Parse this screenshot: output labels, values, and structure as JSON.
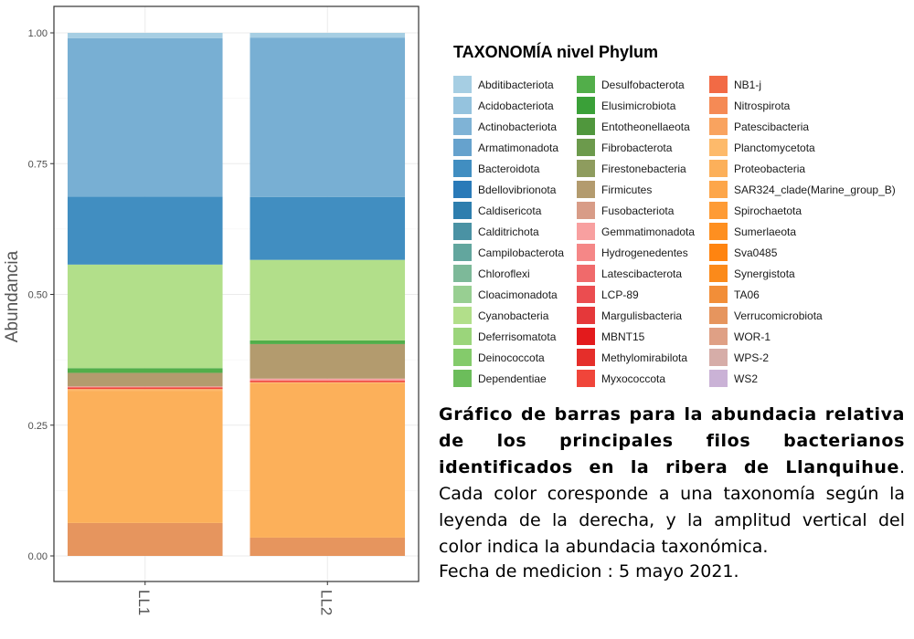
{
  "chart_data": {
    "type": "bar",
    "stacked": true,
    "categories": [
      "LL1",
      "LL2"
    ],
    "ylabel": "Abundancia",
    "xlabel": "",
    "ylim": [
      0,
      1
    ],
    "yticks": [
      "0.00",
      "0.25",
      "0.50",
      "0.75",
      "1.00"
    ],
    "grid": true,
    "legend_position": "right",
    "legend_title": "TAXONOMÍA nivel Phylum",
    "series": [
      {
        "name": "Verrucomicrobiota",
        "values": [
          0.063,
          0.035
        ]
      },
      {
        "name": "Proteobacteria",
        "values": [
          0.252,
          0.295
        ]
      },
      {
        "name": "Planctomycetota",
        "values": [
          0.004,
          0.002
        ]
      },
      {
        "name": "Myxococcota",
        "values": [
          0.003,
          0.003
        ]
      },
      {
        "name": "Gemmatimonadota",
        "values": [
          0.002,
          0.004
        ]
      },
      {
        "name": "Firmicutes",
        "values": [
          0.026,
          0.066
        ]
      },
      {
        "name": "Desulfobacterota",
        "values": [
          0.009,
          0.007
        ]
      },
      {
        "name": "Cyanobacteria",
        "values": [
          0.198,
          0.154
        ]
      },
      {
        "name": "Bacteroidota",
        "values": [
          0.13,
          0.12
        ]
      },
      {
        "name": "Actinobacteriota",
        "values": [
          0.303,
          0.305
        ]
      },
      {
        "name": "Abditibacteriota",
        "values": [
          0.01,
          0.009
        ]
      }
    ],
    "colors": {
      "Verrucomicrobiota": "#E6955E",
      "Proteobacteria": "#FCB05A",
      "Planctomycetota": "#FDBA6B",
      "Myxococcota": "#F0453A",
      "Gemmatimonadota": "#F8A0A0",
      "Firmicutes": "#B39B6E",
      "Desulfobacterota": "#52AE4A",
      "Cyanobacteria": "#B2DF8A",
      "Bacteroidota": "#418EC1",
      "Actinobacteriota": "#78AFD3",
      "Abditibacteriota": "#A6CEE3"
    }
  },
  "legend": {
    "title": "TAXONOMÍA nivel Phylum",
    "columns": [
      [
        {
          "label": "Abditibacteriota",
          "color": "#A6CEE3"
        },
        {
          "label": "Acidobacteriota",
          "color": "#95C3DE"
        },
        {
          "label": "Actinobacteriota",
          "color": "#7FB3D6"
        },
        {
          "label": "Armatimonadota",
          "color": "#66A2CD"
        },
        {
          "label": "Bacteroidota",
          "color": "#418EC1"
        },
        {
          "label": "Bdellovibrionota",
          "color": "#2A7AB8"
        },
        {
          "label": "Caldisericota",
          "color": "#2E7EAE"
        },
        {
          "label": "Calditrichota",
          "color": "#4A92A4"
        },
        {
          "label": "Campilobacterota",
          "color": "#62A69E"
        },
        {
          "label": "Chloroflexi",
          "color": "#7DB999"
        },
        {
          "label": "Cloacimonadota",
          "color": "#98CF92"
        },
        {
          "label": "Cyanobacteria",
          "color": "#B2DF8A"
        },
        {
          "label": "Deferrisomatota",
          "color": "#9BD57B"
        },
        {
          "label": "Deinococcota",
          "color": "#84CB6B"
        },
        {
          "label": "Dependentiae",
          "color": "#6CBD5B"
        }
      ],
      [
        {
          "label": "Desulfobacterota",
          "color": "#52AE4A"
        },
        {
          "label": "Elusimicrobiota",
          "color": "#3AA038"
        },
        {
          "label": "Entotheonellaeota",
          "color": "#50973D"
        },
        {
          "label": "Fibrobacterota",
          "color": "#6C9A4C"
        },
        {
          "label": "Firestonebacteria",
          "color": "#8E9C5E"
        },
        {
          "label": "Firmicutes",
          "color": "#B39B6E"
        },
        {
          "label": "Fusobacteriota",
          "color": "#D89C87"
        },
        {
          "label": "Gemmatimonadota",
          "color": "#F8A0A0"
        },
        {
          "label": "Hydrogenedentes",
          "color": "#F58787"
        },
        {
          "label": "Latescibacterota",
          "color": "#F06A6B"
        },
        {
          "label": "LCP-89",
          "color": "#EB4D50"
        },
        {
          "label": "Margulisbacteria",
          "color": "#E5383A"
        },
        {
          "label": "MBNT15",
          "color": "#E31A1C"
        },
        {
          "label": "Methylomirabilota",
          "color": "#E52E2A"
        },
        {
          "label": "Myxococcota",
          "color": "#F0453A"
        }
      ],
      [
        {
          "label": "NB1-j",
          "color": "#F26A45"
        },
        {
          "label": "Nitrospirota",
          "color": "#F58A55"
        },
        {
          "label": "Patescibacteria",
          "color": "#F9A35F"
        },
        {
          "label": "Planctomycetota",
          "color": "#FDBA6B"
        },
        {
          "label": "Proteobacteria",
          "color": "#FCB05A"
        },
        {
          "label": "SAR324_clade(Marine_group_B)",
          "color": "#FDA64A"
        },
        {
          "label": "Spirochaetota",
          "color": "#FE9B35"
        },
        {
          "label": "Sumerlaeota",
          "color": "#FE8F20"
        },
        {
          "label": "Sva0485",
          "color": "#FF8410"
        },
        {
          "label": "Synergistota",
          "color": "#FB8A1A"
        },
        {
          "label": "TA06",
          "color": "#F28E38"
        },
        {
          "label": "Verrucomicrobiota",
          "color": "#E6955E"
        },
        {
          "label": "WOR-1",
          "color": "#DFA085"
        },
        {
          "label": "WPS-2",
          "color": "#D6ADA8"
        },
        {
          "label": "WS2",
          "color": "#CAB2D6"
        }
      ]
    ]
  },
  "caption": {
    "bold": "Gráfico de barras para la abundacia relativa de los principales filos bacterianos identificados en  la ribera de Llanquihue",
    "rest": ". Cada color coresponde a una taxonomía según la leyenda de la derecha, y la amplitud vertical del color indica la abundacia taxonómica.",
    "date": "Fecha de medicion : 5 mayo 2021."
  }
}
